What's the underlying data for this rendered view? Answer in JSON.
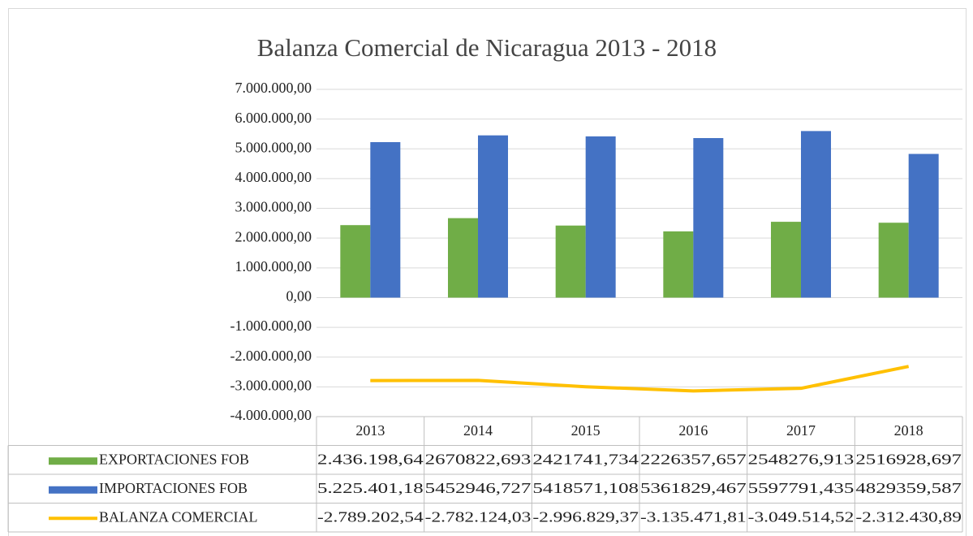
{
  "chart_data": {
    "type": "bar",
    "title": "Balanza Comercial de Nicaragua 2013 - 2018",
    "categories": [
      "2013",
      "2014",
      "2015",
      "2016",
      "2017",
      "2018"
    ],
    "series": [
      {
        "name": "EXPORTACIONES FOB",
        "type": "bar",
        "color": "#70ad47",
        "values": [
          2436198.64,
          2670822.693,
          2421741.734,
          2226357.657,
          2548276.913,
          2516928.697
        ],
        "value_labels": [
          "2.436.198,64",
          "2670822,693",
          "2421741,734",
          "2226357,657",
          "2548276,913",
          "2516928,697"
        ]
      },
      {
        "name": "IMPORTACIONES FOB",
        "type": "bar",
        "color": "#4472c4",
        "values": [
          5225401.18,
          5452946.727,
          5418571.108,
          5361829.467,
          5597791.435,
          4829359.587
        ],
        "value_labels": [
          "5.225.401,18",
          "5452946,727",
          "5418571,108",
          "5361829,467",
          "5597791,435",
          "4829359,587"
        ]
      },
      {
        "name": "BALANZA COMERCIAL",
        "type": "line",
        "color": "#ffc000",
        "values": [
          -2789202.54,
          -2782124.03,
          -2996829.37,
          -3135471.81,
          -3049514.52,
          -2312430.89
        ],
        "value_labels": [
          "-2.789.202,54",
          "-2.782.124,03",
          "-2.996.829,37",
          "-3.135.471,81",
          "-3.049.514,52",
          "-2.312.430,89"
        ]
      }
    ],
    "ylim": [
      -4000000,
      7000000
    ],
    "yticks": [
      {
        "value": -4000000,
        "label": "-4.000.000,00"
      },
      {
        "value": -3000000,
        "label": "-3.000.000,00"
      },
      {
        "value": -2000000,
        "label": "-2.000.000,00"
      },
      {
        "value": -1000000,
        "label": "-1.000.000,00"
      },
      {
        "value": 0,
        "label": "0,00"
      },
      {
        "value": 1000000,
        "label": "1.000.000,00"
      },
      {
        "value": 2000000,
        "label": "2.000.000,00"
      },
      {
        "value": 3000000,
        "label": "3.000.000,00"
      },
      {
        "value": 4000000,
        "label": "4.000.000,00"
      },
      {
        "value": 5000000,
        "label": "5.000.000,00"
      },
      {
        "value": 6000000,
        "label": "6.000.000,00"
      },
      {
        "value": 7000000,
        "label": "7.000.000,00"
      }
    ],
    "grid": true
  }
}
